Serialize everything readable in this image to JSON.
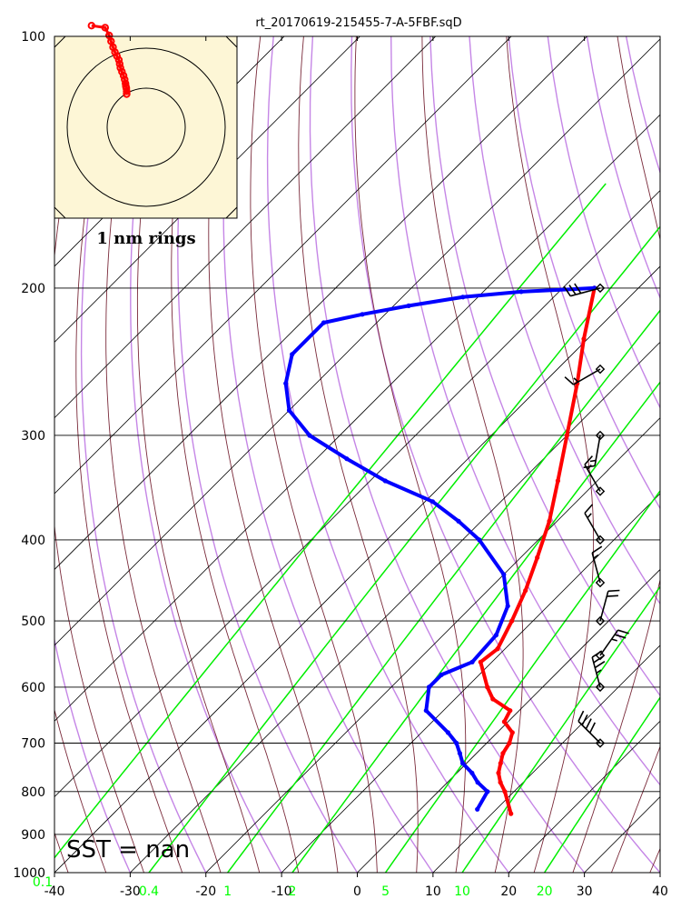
{
  "chart_data": {
    "type": "skew-t",
    "title": "rt_20170619-215455-7-A-5FBF.sqD",
    "pressure_ticks": [
      100,
      200,
      300,
      400,
      500,
      600,
      700,
      800,
      900,
      1000
    ],
    "temperature_ticks": [
      -40,
      -30,
      -20,
      -10,
      0,
      10,
      20,
      30,
      40
    ],
    "mixing_ratio_labels": [
      "0.1",
      "0.4",
      "1",
      "2",
      "5",
      "10",
      "20"
    ],
    "pressure_range": [
      1000,
      100
    ],
    "temperature_range_at_1000": [
      -40,
      40
    ],
    "sst_label": "SST =  nan",
    "inset_label": "1 nm rings",
    "series": [
      {
        "name": "temperature",
        "color": "#ff0000",
        "points": [
          [
            200,
            -45.8
          ],
          [
            230,
            -40.5
          ],
          [
            260,
            -35.5
          ],
          [
            300,
            -30
          ],
          [
            340,
            -25.2
          ],
          [
            380,
            -21
          ],
          [
            420,
            -17.8
          ],
          [
            460,
            -15
          ],
          [
            500,
            -12.8
          ],
          [
            540,
            -11
          ],
          [
            560,
            -11.5
          ],
          [
            600,
            -7.3
          ],
          [
            620,
            -5
          ],
          [
            640,
            -1.2
          ],
          [
            660,
            -0.5
          ],
          [
            680,
            2
          ],
          [
            700,
            3
          ],
          [
            720,
            3.5
          ],
          [
            740,
            4.5
          ],
          [
            760,
            5.5
          ],
          [
            780,
            7
          ],
          [
            800,
            8.8
          ],
          [
            850,
            12.5
          ]
        ]
      },
      {
        "name": "dewpoint",
        "color": "#0000ff",
        "points": [
          [
            200,
            -45.8
          ],
          [
            202,
            -55
          ],
          [
            205,
            -62
          ],
          [
            210,
            -68
          ],
          [
            215,
            -73
          ],
          [
            220,
            -77
          ],
          [
            240,
            -77
          ],
          [
            260,
            -74
          ],
          [
            280,
            -70
          ],
          [
            300,
            -64
          ],
          [
            320,
            -56
          ],
          [
            340,
            -48
          ],
          [
            360,
            -39
          ],
          [
            380,
            -33
          ],
          [
            400,
            -27.8
          ],
          [
            440,
            -20
          ],
          [
            480,
            -15.3
          ],
          [
            520,
            -13
          ],
          [
            560,
            -12.6
          ],
          [
            580,
            -15
          ],
          [
            600,
            -15
          ],
          [
            640,
            -12.3
          ],
          [
            680,
            -6.5
          ],
          [
            700,
            -4
          ],
          [
            720,
            -2.2
          ],
          [
            740,
            -0.5
          ],
          [
            760,
            2
          ],
          [
            780,
            4
          ],
          [
            800,
            6.5
          ],
          [
            840,
            7.5
          ]
        ]
      }
    ],
    "wind_barbs": [
      {
        "p": 200,
        "dir": 255,
        "speed": 30
      },
      {
        "p": 250,
        "dir": 240,
        "speed": 15
      },
      {
        "p": 300,
        "dir": 190,
        "speed": 15
      },
      {
        "p": 350,
        "dir": 330,
        "speed": 15
      },
      {
        "p": 400,
        "dir": 330,
        "speed": 15
      },
      {
        "p": 450,
        "dir": 345,
        "speed": 15
      },
      {
        "p": 500,
        "dir": 15,
        "speed": 20
      },
      {
        "p": 550,
        "dir": 35,
        "speed": 25
      },
      {
        "p": 600,
        "dir": 345,
        "speed": 35
      },
      {
        "p": 700,
        "dir": 315,
        "speed": 40
      }
    ],
    "inset_track": [
      [
        -1.4,
        2.6
      ],
      [
        -1.05,
        2.55
      ],
      [
        -0.95,
        2.35
      ],
      [
        -0.9,
        2.2
      ],
      [
        -0.85,
        2.05
      ],
      [
        -0.8,
        1.92
      ],
      [
        -0.75,
        1.82
      ],
      [
        -0.7,
        1.72
      ],
      [
        -0.68,
        1.62
      ],
      [
        -0.66,
        1.52
      ],
      [
        -0.62,
        1.42
      ],
      [
        -0.58,
        1.32
      ],
      [
        -0.55,
        1.22
      ],
      [
        -0.53,
        1.12
      ],
      [
        -0.52,
        1.05
      ],
      [
        -0.51,
        1.0
      ],
      [
        -0.5,
        0.92
      ],
      [
        -0.5,
        0.85
      ]
    ]
  }
}
